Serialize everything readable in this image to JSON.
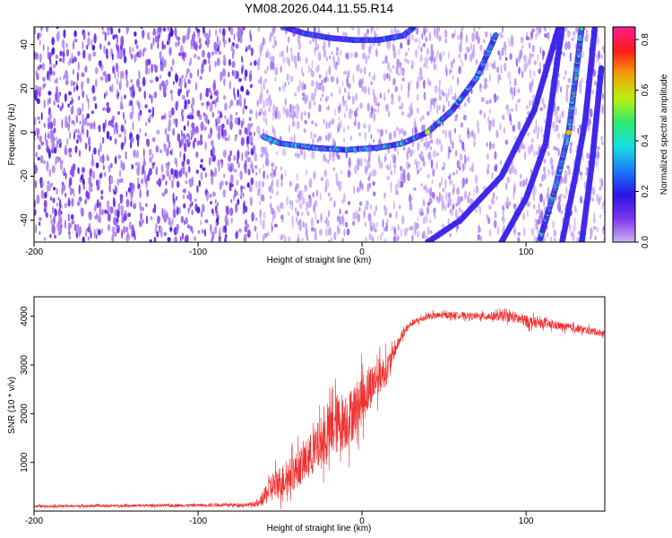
{
  "title": "YM08.2026.044.11.55.R14",
  "chart_data": [
    {
      "type": "heatmap",
      "name": "spectrogram",
      "xlabel": "Height of straight line (km)",
      "ylabel": "Frequency (Hz)",
      "xlim": [
        -200,
        148
      ],
      "ylim": [
        -50,
        48
      ],
      "xticks": [
        -200,
        -100,
        0,
        100
      ],
      "yticks": [
        -40,
        -20,
        0,
        20,
        40
      ],
      "colorbar": {
        "label": "Normalized spectral amplitude",
        "range": [
          0.0,
          0.85
        ],
        "ticks": [
          "0.0",
          "0.2",
          "0.4",
          "0.6",
          "0.8"
        ],
        "colormap": [
          "#cdb2f2",
          "#7a34ee",
          "#2a14e6",
          "#1b7bf6",
          "#16e0e0",
          "#2ee870",
          "#b8f10f",
          "#f3a208",
          "#ff1a1a",
          "#ff1c8e"
        ]
      },
      "background_regions": [
        {
          "x_from": -200,
          "x_to": -65,
          "level": "high"
        },
        {
          "x_from": -65,
          "x_to": 148,
          "level": "low"
        }
      ],
      "curves": [
        {
          "name": "branch-lower",
          "x": [
            -60,
            -50,
            -30,
            -10,
            10,
            25,
            40,
            55,
            70,
            82
          ],
          "y": [
            -2,
            -5,
            -7,
            -8,
            -7,
            -5,
            0,
            10,
            25,
            45
          ],
          "peak": 0.45
        },
        {
          "name": "branch-upper",
          "x": [
            -48,
            -35,
            -20,
            -5,
            10,
            25,
            32
          ],
          "y": [
            48,
            45,
            43,
            42,
            42,
            44,
            48
          ],
          "peak": 0.3
        },
        {
          "name": "streak-1",
          "x": [
            40,
            60,
            85,
            105,
            120
          ],
          "y": [
            -50,
            -40,
            -20,
            10,
            48
          ],
          "peak": 0.2
        },
        {
          "name": "streak-2",
          "x": [
            85,
            100,
            112,
            122
          ],
          "y": [
            -50,
            -30,
            -5,
            48
          ],
          "peak": 0.2
        },
        {
          "name": "streak-3",
          "x": [
            108,
            118,
            126,
            134
          ],
          "y": [
            -50,
            -25,
            0,
            48
          ],
          "peak": 0.5
        },
        {
          "name": "streak-4",
          "x": [
            122,
            130,
            136,
            142
          ],
          "y": [
            -50,
            -20,
            5,
            48
          ],
          "peak": 0.2
        },
        {
          "name": "streak-5",
          "x": [
            134,
            140,
            146
          ],
          "y": [
            -50,
            -15,
            30
          ],
          "peak": 0.2
        }
      ]
    },
    {
      "type": "line",
      "name": "snr",
      "xlabel": "Height of straight line (km)",
      "ylabel": "SNR (10 * v/v)",
      "xlim": [
        -200,
        148
      ],
      "ylim": [
        0,
        4400
      ],
      "xticks": [
        -200,
        -100,
        0,
        100
      ],
      "yticks": [
        1000,
        2000,
        3000,
        4000
      ],
      "color": "#f03030",
      "envelope": {
        "x": [
          -200,
          -150,
          -100,
          -70,
          -63,
          -55,
          -45,
          -35,
          -25,
          -15,
          -8,
          0,
          8,
          15,
          20,
          25,
          30,
          40,
          55,
          70,
          90,
          100,
          110,
          130,
          148
        ],
        "mean": [
          100,
          110,
          120,
          130,
          150,
          500,
          700,
          1000,
          1400,
          1800,
          1900,
          2300,
          2700,
          2900,
          3300,
          3650,
          3850,
          4000,
          4030,
          4000,
          4000,
          3900,
          3850,
          3750,
          3650
        ],
        "spread": [
          60,
          60,
          70,
          80,
          150,
          700,
          800,
          900,
          1200,
          1400,
          1300,
          1200,
          900,
          700,
          300,
          200,
          150,
          150,
          150,
          150,
          250,
          300,
          200,
          180,
          150
        ]
      }
    }
  ]
}
